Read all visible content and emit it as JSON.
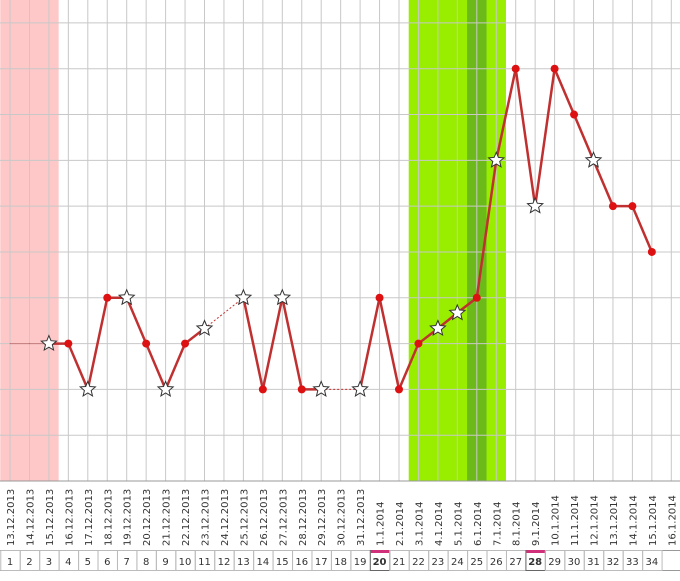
{
  "chart_data": {
    "type": "line",
    "categories": [
      "13.12.2013",
      "14.12.2013",
      "15.12.2013",
      "16.12.2013",
      "17.12.2013",
      "18.12.2013",
      "19.12.2013",
      "20.12.2013",
      "21.12.2013",
      "22.12.2013",
      "23.12.2013",
      "24.12.2013",
      "25.12.2013",
      "26.12.2013",
      "27.12.2013",
      "28.12.2013",
      "29.12.2013",
      "30.12.2013",
      "31.12.2013",
      "1.1.2014",
      "2.1.2014",
      "3.1.2014",
      "4.1.2014",
      "5.1.2014",
      "6.1.2014",
      "7.1.2014",
      "8.1.2014",
      "9.1.2014",
      "10.1.2014",
      "11.1.2014",
      "12.1.2014",
      "13.1.2014",
      "14.1.2014",
      "15.1.2014",
      "16.1.2014"
    ],
    "day_numbers": [
      1,
      2,
      3,
      4,
      5,
      6,
      7,
      8,
      9,
      10,
      11,
      12,
      13,
      14,
      15,
      16,
      17,
      18,
      19,
      20,
      21,
      22,
      23,
      24,
      25,
      26,
      27,
      28,
      29,
      30,
      31,
      32,
      33,
      34,
      null
    ],
    "values": [
      3,
      3,
      3,
      3,
      2,
      4,
      4,
      3,
      2,
      3,
      3.33,
      null,
      4,
      2,
      4,
      2,
      2,
      null,
      2,
      4,
      2,
      3,
      3.33,
      3.67,
      4,
      7,
      9,
      6,
      9,
      8,
      7,
      6,
      6,
      5,
      null
    ],
    "markers": [
      "none",
      "none",
      "star",
      "dot",
      "star",
      "dot",
      "star",
      "dot",
      "star",
      "dot",
      "star",
      null,
      "star",
      "dot",
      "star",
      "dot",
      "star",
      null,
      "star",
      "dot",
      "dot",
      "dot",
      "star",
      "star",
      "dot",
      "star",
      "dot",
      "star",
      "dot",
      "dot",
      "star",
      "dot",
      "dot",
      "dot",
      null
    ],
    "color": "#c03030",
    "ylim": [
      0,
      10.5
    ],
    "yticks": [
      1,
      2,
      3,
      4,
      5,
      6,
      7,
      8,
      9,
      10
    ],
    "grid": true,
    "highlighted_days": [
      20,
      28
    ],
    "shaded": [
      {
        "start": 1,
        "end": 3,
        "color": "#ffc8c8"
      },
      {
        "start": 22,
        "end": 26,
        "color": "#99ee00"
      },
      {
        "start": 25,
        "end": 25,
        "color": "#6cba1a"
      }
    ]
  }
}
